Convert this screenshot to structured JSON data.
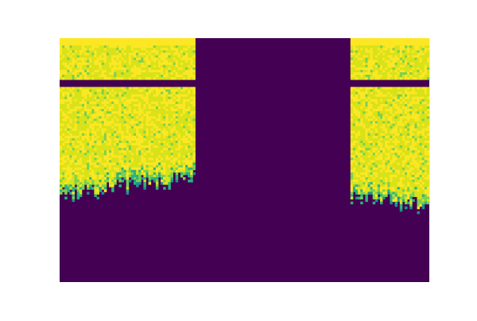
{
  "chart_data": {
    "type": "heatmap",
    "title": "",
    "xlabel": "",
    "ylabel": "",
    "axes_visible": false,
    "grid": false,
    "legend": "none",
    "colormap": "viridis",
    "colors": {
      "low": "#440154",
      "mid_low": "#21918c",
      "mid_high": "#7ad151",
      "high": "#fde725"
    },
    "n_columns": 150,
    "n_rows": 100,
    "x_range": [
      0,
      150
    ],
    "y_range": [
      0,
      100
    ],
    "value_range": [
      0,
      1
    ],
    "regions": [
      {
        "columns": [
          0,
          55
        ],
        "state": "active",
        "edge_row_start": 62,
        "edge_row_end": 55,
        "dark_band_rows": [
          17,
          20
        ]
      },
      {
        "columns": [
          55,
          118
        ],
        "state": "inactive"
      },
      {
        "columns": [
          118,
          150
        ],
        "state": "active",
        "edge_row_start": 62,
        "edge_row_end": 67,
        "dark_band_rows": [
          17,
          20
        ]
      }
    ]
  }
}
